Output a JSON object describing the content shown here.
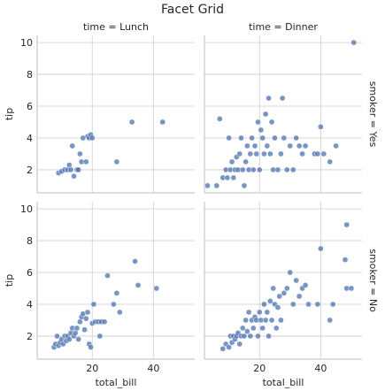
{
  "title": "Facet Grid",
  "chart_data": {
    "type": "scatter",
    "title": "Facet Grid",
    "xlabel": "total_bill",
    "ylabel": "tip",
    "xlim": [
      2,
      53.5
    ],
    "ylim": [
      0.55,
      10.45
    ],
    "xticks": [
      "20",
      "40"
    ],
    "xtick_values": [
      20,
      40
    ],
    "yticks": [
      "2",
      "4",
      "6",
      "8",
      "10"
    ],
    "ytick_values": [
      2,
      4,
      6,
      8,
      10
    ],
    "grid": true,
    "point_color": "#4c72b0",
    "col_titles": [
      "time = Lunch",
      "time = Dinner"
    ],
    "row_titles": [
      "smoker = Yes",
      "smoker = No"
    ],
    "panels": [
      {
        "row": 0,
        "col": 0,
        "points": [
          [
            9,
            1.8
          ],
          [
            10,
            1.9
          ],
          [
            11,
            2.0
          ],
          [
            12,
            2.0
          ],
          [
            12.5,
            2.3
          ],
          [
            13,
            2.0
          ],
          [
            13.5,
            3.5
          ],
          [
            14,
            1.6
          ],
          [
            15,
            2.0
          ],
          [
            15.5,
            2.0
          ],
          [
            16,
            3.0
          ],
          [
            16.5,
            2.5
          ],
          [
            17,
            4.0
          ],
          [
            18,
            2.5
          ],
          [
            18.5,
            4.1
          ],
          [
            19,
            4.0
          ],
          [
            19.5,
            4.2
          ],
          [
            20,
            4.0
          ],
          [
            28,
            2.5
          ],
          [
            33,
            5.0
          ],
          [
            43,
            5.0
          ]
        ]
      },
      {
        "row": 0,
        "col": 1,
        "points": [
          [
            3,
            1.0
          ],
          [
            6,
            1.0
          ],
          [
            7,
            5.2
          ],
          [
            8,
            1.5
          ],
          [
            9,
            2.0
          ],
          [
            9.5,
            1.5
          ],
          [
            10,
            4.0
          ],
          [
            10.5,
            2.0
          ],
          [
            11,
            2.5
          ],
          [
            11.5,
            1.5
          ],
          [
            12,
            2.0
          ],
          [
            12.5,
            2.8
          ],
          [
            13,
            2.0
          ],
          [
            13.5,
            3.0
          ],
          [
            14,
            4.0
          ],
          [
            14.5,
            2.0
          ],
          [
            15,
            1.0
          ],
          [
            15.5,
            2.5
          ],
          [
            16,
            3.5
          ],
          [
            16.5,
            2.0
          ],
          [
            17,
            3.0
          ],
          [
            17.5,
            4.0
          ],
          [
            18,
            2.0
          ],
          [
            18.5,
            3.5
          ],
          [
            19,
            3.0
          ],
          [
            19.5,
            5.0
          ],
          [
            20,
            2.0
          ],
          [
            20.5,
            4.5
          ],
          [
            21,
            4.0
          ],
          [
            21.5,
            3.0
          ],
          [
            22,
            5.5
          ],
          [
            22.5,
            3.5
          ],
          [
            23,
            6.5
          ],
          [
            23.5,
            3.0
          ],
          [
            24,
            5.0
          ],
          [
            24.5,
            2.0
          ],
          [
            25,
            4.0
          ],
          [
            26,
            2.0
          ],
          [
            27,
            3.0
          ],
          [
            27.5,
            6.5
          ],
          [
            28,
            4.0
          ],
          [
            29,
            2.0
          ],
          [
            30,
            3.5
          ],
          [
            31,
            2.0
          ],
          [
            32,
            4.0
          ],
          [
            33,
            3.5
          ],
          [
            34,
            3.0
          ],
          [
            35,
            3.5
          ],
          [
            38,
            3.0
          ],
          [
            39,
            3.0
          ],
          [
            40,
            4.7
          ],
          [
            41,
            3.0
          ],
          [
            43,
            2.5
          ],
          [
            45,
            3.5
          ],
          [
            50.8,
            10.0
          ]
        ]
      },
      {
        "row": 1,
        "col": 0,
        "points": [
          [
            7.5,
            1.3
          ],
          [
            8,
            1.5
          ],
          [
            8.5,
            2.0
          ],
          [
            9,
            1.4
          ],
          [
            9.5,
            1.6
          ],
          [
            10,
            1.8
          ],
          [
            10.5,
            1.5
          ],
          [
            11,
            2.0
          ],
          [
            11.5,
            1.7
          ],
          [
            12,
            2.0
          ],
          [
            12.5,
            1.8
          ],
          [
            13,
            2.2
          ],
          [
            13.5,
            2.5
          ],
          [
            14,
            2.0
          ],
          [
            14.5,
            2.2
          ],
          [
            15,
            2.5
          ],
          [
            15.5,
            1.8
          ],
          [
            16,
            2.9
          ],
          [
            16.5,
            3.2
          ],
          [
            17,
            3.4
          ],
          [
            17.5,
            2.4
          ],
          [
            18,
            3.1
          ],
          [
            18.5,
            3.5
          ],
          [
            19,
            1.5
          ],
          [
            19.5,
            1.3
          ],
          [
            20,
            2.8
          ],
          [
            20.5,
            4.0
          ],
          [
            21,
            2.9
          ],
          [
            22,
            2.9
          ],
          [
            22.5,
            2.0
          ],
          [
            23,
            2.9
          ],
          [
            24,
            2.9
          ],
          [
            25,
            5.8
          ],
          [
            27,
            4.0
          ],
          [
            28,
            4.7
          ],
          [
            29,
            3.5
          ],
          [
            34,
            6.7
          ],
          [
            35,
            5.2
          ],
          [
            41,
            5.0
          ]
        ]
      },
      {
        "row": 1,
        "col": 1,
        "points": [
          [
            8,
            1.2
          ],
          [
            9,
            1.5
          ],
          [
            10,
            1.3
          ],
          [
            10.5,
            2.0
          ],
          [
            11,
            1.6
          ],
          [
            11.5,
            2.0
          ],
          [
            12,
            1.8
          ],
          [
            12.5,
            2.0
          ],
          [
            13,
            2.2
          ],
          [
            13.5,
            1.5
          ],
          [
            14,
            2.0
          ],
          [
            14.5,
            2.5
          ],
          [
            15,
            2.0
          ],
          [
            15.5,
            3.0
          ],
          [
            16,
            2.3
          ],
          [
            16.5,
            3.5
          ],
          [
            17,
            2.0
          ],
          [
            17.5,
            3.0
          ],
          [
            18,
            2.5
          ],
          [
            18.5,
            3.2
          ],
          [
            19,
            3.0
          ],
          [
            19.5,
            2.0
          ],
          [
            20,
            3.5
          ],
          [
            20.5,
            3.0
          ],
          [
            21,
            2.5
          ],
          [
            21.5,
            4.0
          ],
          [
            22,
            3.0
          ],
          [
            22.5,
            3.5
          ],
          [
            23,
            2.0
          ],
          [
            23.5,
            4.2
          ],
          [
            24,
            3.0
          ],
          [
            24.5,
            5.0
          ],
          [
            25,
            4.0
          ],
          [
            25.5,
            2.5
          ],
          [
            26,
            3.8
          ],
          [
            26.5,
            4.5
          ],
          [
            27,
            3.0
          ],
          [
            28,
            4.7
          ],
          [
            29,
            5.0
          ],
          [
            30,
            6.0
          ],
          [
            31,
            4.0
          ],
          [
            32,
            5.5
          ],
          [
            33,
            4.5
          ],
          [
            34,
            5.0
          ],
          [
            35,
            5.2
          ],
          [
            36,
            4.0
          ],
          [
            39,
            4.0
          ],
          [
            40,
            7.5
          ],
          [
            43,
            3.0
          ],
          [
            44,
            4.0
          ],
          [
            48,
            6.8
          ],
          [
            48.5,
            9.0
          ],
          [
            48.5,
            5.0
          ],
          [
            50,
            5.0
          ]
        ]
      }
    ]
  }
}
